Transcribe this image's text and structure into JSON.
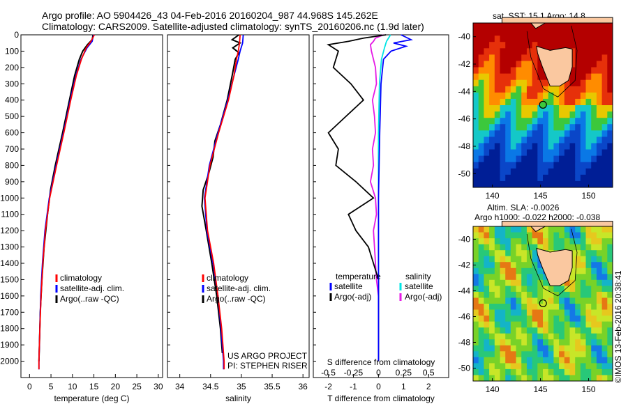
{
  "header": {
    "line1": "Argo profile: AO 5904426_43 04-Feb-2016 20160204_987 44.968S 145.262E",
    "line2": "Climatology: CARS2009. Satellite-adjusted climatology: synTS_20160206.nc (1.9d later)"
  },
  "project": {
    "line1": "US ARGO PROJECT",
    "line2": "PI: STEPHEN RISER"
  },
  "stamp": "©IMOS 13-Feb-2016 20:38:41",
  "colors": {
    "climatology": "#ff0000",
    "satellite": "#0000ff",
    "argo": "#000000",
    "sat_salinity": "#00e5e5",
    "argo_salinity": "#e51ae5"
  },
  "chart_data": [
    {
      "type": "line",
      "xlabel": "temperature (deg C)",
      "ylabel": "",
      "xlim": [
        -2,
        31
      ],
      "ylim": [
        2100,
        0
      ],
      "xticks": [
        0,
        5,
        10,
        15,
        20,
        25,
        30
      ],
      "yticks": [
        0,
        100,
        200,
        300,
        400,
        500,
        600,
        700,
        800,
        900,
        1000,
        1100,
        1200,
        1300,
        1400,
        1500,
        1600,
        1700,
        1800,
        1900,
        2000
      ],
      "legend": [
        "climatology",
        "satellite-adj. clim.",
        "Argo(..raw -QC)"
      ],
      "legend_position": "bottom-right",
      "series": [
        {
          "name": "climatology",
          "depth": [
            0,
            40,
            80,
            150,
            250,
            400,
            600,
            800,
            1000,
            1200,
            1400,
            1600,
            1800,
            2000,
            2050
          ],
          "values": [
            15.1,
            14.3,
            13.2,
            12.1,
            10.9,
            9.6,
            8.0,
            6.3,
            4.7,
            3.7,
            3.1,
            2.7,
            2.4,
            2.2,
            2.2
          ]
        },
        {
          "name": "satellite-adj. clim.",
          "depth": [
            0,
            40,
            80,
            150,
            250,
            400,
            600,
            800,
            1000,
            1200,
            1400,
            1600,
            1800,
            2000,
            2050
          ],
          "values": [
            14.9,
            14.6,
            13.4,
            12.0,
            10.8,
            9.5,
            7.9,
            6.2,
            4.6,
            3.6,
            3.0,
            2.6,
            2.4,
            2.2,
            2.2
          ]
        },
        {
          "name": "Argo(..raw -QC)",
          "depth": [
            0,
            30,
            60,
            100,
            150,
            250,
            400,
            600,
            800,
            950,
            1100,
            1300,
            1500,
            1700,
            1900,
            2000
          ],
          "values": [
            14.8,
            14.6,
            13.5,
            12.4,
            11.6,
            10.5,
            9.3,
            7.7,
            6.0,
            4.9,
            4.2,
            3.4,
            2.9,
            2.5,
            2.3,
            2.2
          ]
        }
      ]
    },
    {
      "type": "line",
      "xlabel": "salinity",
      "ylabel": "",
      "xlim": [
        33.8,
        36.1
      ],
      "ylim": [
        2100,
        0
      ],
      "xticks": [
        34,
        34.5,
        35,
        35.5,
        36
      ],
      "xticklabels": [
        "34",
        "34.5",
        "35",
        "35.5",
        "36"
      ],
      "legend": [
        "climatology",
        "satellite-adj. clim.",
        "Argo(..raw -QC)"
      ],
      "legend_position": "bottom-right",
      "series": [
        {
          "name": "climatology",
          "depth": [
            0,
            50,
            100,
            150,
            250,
            400,
            600,
            800,
            1000,
            1200,
            1400,
            1600,
            1800,
            2000,
            2050
          ],
          "values": [
            34.98,
            34.97,
            34.95,
            34.92,
            34.88,
            34.79,
            34.63,
            34.49,
            34.41,
            34.45,
            34.55,
            34.62,
            34.68,
            34.72,
            34.72
          ]
        },
        {
          "name": "satellite-adj. clim.",
          "depth": [
            0,
            50,
            100,
            150,
            250,
            400,
            600,
            800,
            1000,
            1200,
            1400,
            1600,
            1800,
            2000,
            2050
          ],
          "values": [
            35.03,
            35.02,
            34.98,
            34.95,
            34.88,
            34.78,
            34.62,
            34.48,
            34.4,
            34.44,
            34.54,
            34.62,
            34.67,
            34.71,
            34.71
          ]
        },
        {
          "name": "Argo(..raw -QC)",
          "depth": [
            0,
            30,
            50,
            80,
            110,
            150,
            250,
            400,
            550,
            650,
            750,
            850,
            950,
            1050,
            1200,
            1400,
            1600,
            1800,
            1950
          ],
          "values": [
            34.96,
            34.85,
            34.98,
            34.86,
            34.96,
            34.9,
            34.85,
            34.77,
            34.66,
            34.57,
            34.54,
            34.47,
            34.38,
            34.36,
            34.43,
            34.52,
            34.6,
            34.66,
            34.69
          ]
        }
      ]
    },
    {
      "type": "line",
      "xlabel": "T difference from climatology",
      "xlabel_top": "S difference from climatology",
      "xlim": [
        -2.6,
        2.8
      ],
      "xticks": [
        -2,
        -1,
        0,
        1,
        2
      ],
      "xticks_top": [
        -0.5,
        -0.25,
        0,
        0.25,
        0.5
      ],
      "ylim": [
        2100,
        0
      ],
      "legend_left_title": "temperature",
      "legend_right_title": "salinity",
      "legend_left": [
        "satellite",
        "Argo(-adj)"
      ],
      "legend_right": [
        "satellite",
        "Argo(-adj)"
      ],
      "series": [
        {
          "name": "temperature satellite",
          "depth": [
            0,
            30,
            50,
            70,
            100,
            150,
            300,
            600,
            1000,
            1500,
            2000
          ],
          "values": [
            0.9,
            1.3,
            0.6,
            1.1,
            0.5,
            0.2,
            0.1,
            0.05,
            0.0,
            0.0,
            0.0
          ]
        },
        {
          "name": "temperature Argo(-adj)",
          "depth": [
            0,
            20,
            40,
            60,
            100,
            200,
            300,
            400,
            500,
            600,
            700,
            800,
            900,
            1000,
            1100,
            1200,
            1300,
            1400,
            1500,
            1600,
            1800,
            2000
          ],
          "values": [
            0.3,
            -0.6,
            -1.2,
            -2.0,
            -1.6,
            -1.8,
            -1.1,
            -0.6,
            -1.3,
            -2.0,
            -1.6,
            -1.7,
            -0.9,
            -0.2,
            -1.2,
            -0.9,
            -0.4,
            -0.2,
            0.0,
            0.0,
            0.0,
            0.0
          ]
        },
        {
          "name": "salinity satellite",
          "depth": [
            0,
            40,
            80,
            150,
            300,
            600,
            1000,
            1500,
            2000
          ],
          "values": [
            0.12,
            0.08,
            0.06,
            0.03,
            0.01,
            0.0,
            0.0,
            0.0,
            0.0
          ]
        },
        {
          "name": "salinity Argo(-adj)",
          "depth": [
            0,
            20,
            40,
            60,
            100,
            200,
            300,
            400,
            500,
            600,
            700,
            800,
            900,
            1000,
            1100,
            1200,
            1300,
            1400,
            1500,
            1600,
            1800,
            2000
          ],
          "values": [
            0.05,
            -0.03,
            -0.05,
            -0.08,
            -0.07,
            -0.03,
            -0.02,
            -0.06,
            -0.04,
            -0.03,
            -0.06,
            -0.05,
            -0.08,
            -0.03,
            -0.02,
            -0.05,
            -0.04,
            -0.03,
            -0.02,
            0.0,
            0.0,
            0.0
          ]
        }
      ]
    },
    {
      "type": "heatmap",
      "title": "sat. SST: 15.1  Argo: 14.8",
      "xlim": [
        138,
        152.5
      ],
      "ylim": [
        -51,
        -39
      ],
      "xticks": [
        140,
        145,
        150
      ],
      "yticks": [
        -40,
        -42,
        -44,
        -46,
        -48,
        -50
      ],
      "marker": {
        "lon": 145.262,
        "lat": -44.968
      }
    },
    {
      "type": "heatmap",
      "title": "Altim. SLA: -0.0026",
      "subtitle": "Argo h1000: -0.022 h2000: -0.038",
      "xlim": [
        138,
        152.5
      ],
      "ylim": [
        -51,
        -39
      ],
      "xticks": [
        140,
        145,
        150
      ],
      "yticks": [
        -40,
        -42,
        -44,
        -46,
        -48,
        -50
      ],
      "marker": {
        "lon": 145.262,
        "lat": -44.968
      }
    }
  ]
}
